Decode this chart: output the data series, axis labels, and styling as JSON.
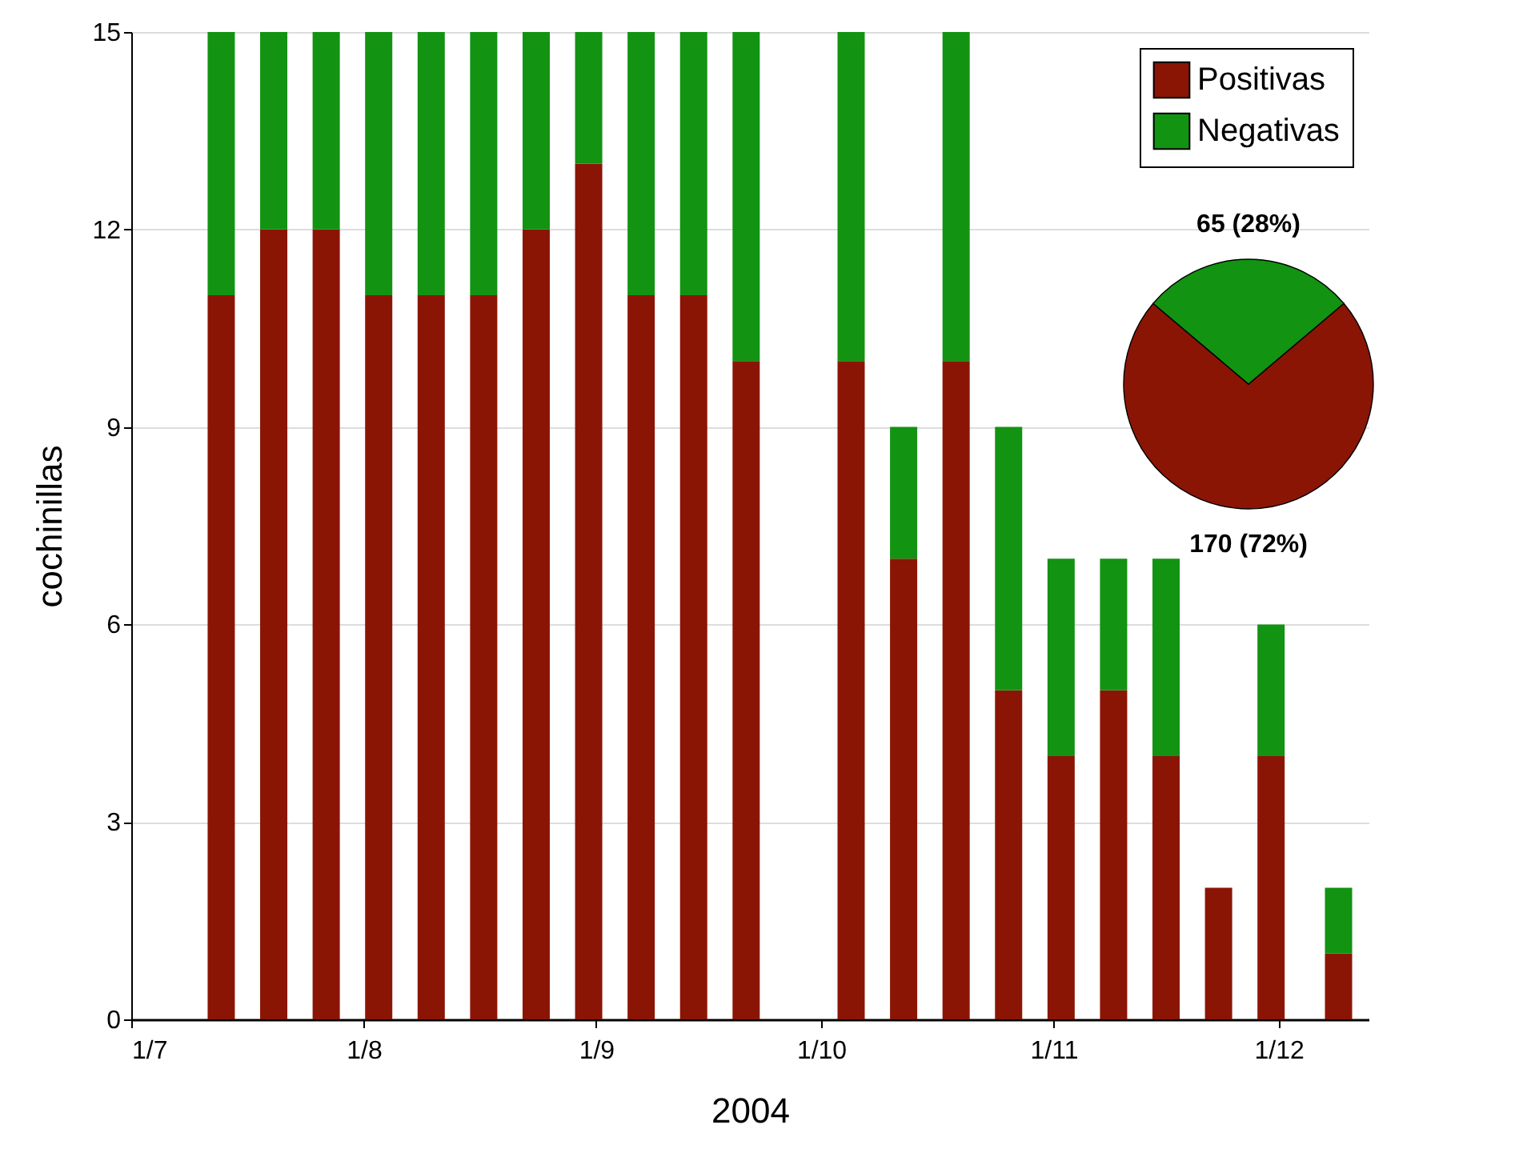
{
  "chart_data": [
    {
      "type": "bar",
      "stacked": true,
      "xlabel": "2004",
      "ylabel": "cochinillas",
      "x": [
        "2004-07-13",
        "2004-07-20",
        "2004-07-27",
        "2004-08-03",
        "2004-08-10",
        "2004-08-17",
        "2004-08-24",
        "2004-08-31",
        "2004-09-07",
        "2004-09-14",
        "2004-09-21",
        "2004-10-05",
        "2004-10-12",
        "2004-10-19",
        "2004-10-26",
        "2004-11-02",
        "2004-11-09",
        "2004-11-16",
        "2004-11-23",
        "2004-11-30",
        "2004-12-09"
      ],
      "series": [
        {
          "name": "Positivas",
          "color": "#8b1505",
          "values": [
            11,
            12,
            12,
            11,
            11,
            11,
            12,
            13,
            11,
            11,
            10,
            10,
            7,
            10,
            5,
            4,
            5,
            4,
            2,
            4,
            1
          ]
        },
        {
          "name": "Negativas",
          "color": "#129312",
          "values": [
            4,
            3,
            3,
            4,
            4,
            4,
            3,
            2,
            4,
            4,
            5,
            5,
            2,
            5,
            4,
            3,
            2,
            3,
            0,
            2,
            1
          ]
        }
      ],
      "xlim": [
        "2004-07-01",
        "2004-12-13"
      ],
      "xticks": [
        {
          "value": "2004-07-01",
          "label": "1/7"
        },
        {
          "value": "2004-08-01",
          "label": "1/8"
        },
        {
          "value": "2004-09-01",
          "label": "1/9"
        },
        {
          "value": "2004-10-01",
          "label": "1/10"
        },
        {
          "value": "2004-11-01",
          "label": "1/11"
        },
        {
          "value": "2004-12-01",
          "label": "1/12"
        }
      ],
      "ylim": [
        0,
        15
      ],
      "yticks": [
        0,
        3,
        6,
        9,
        12,
        15
      ],
      "grid": "y",
      "legend": "top right"
    },
    {
      "type": "pie",
      "categories": [
        null,
        null
      ],
      "values": [
        170,
        65
      ],
      "colors": [
        "#8b1505",
        "#129312"
      ],
      "value_labels": [
        "170  (72%)",
        "65  (28%)"
      ]
    }
  ]
}
